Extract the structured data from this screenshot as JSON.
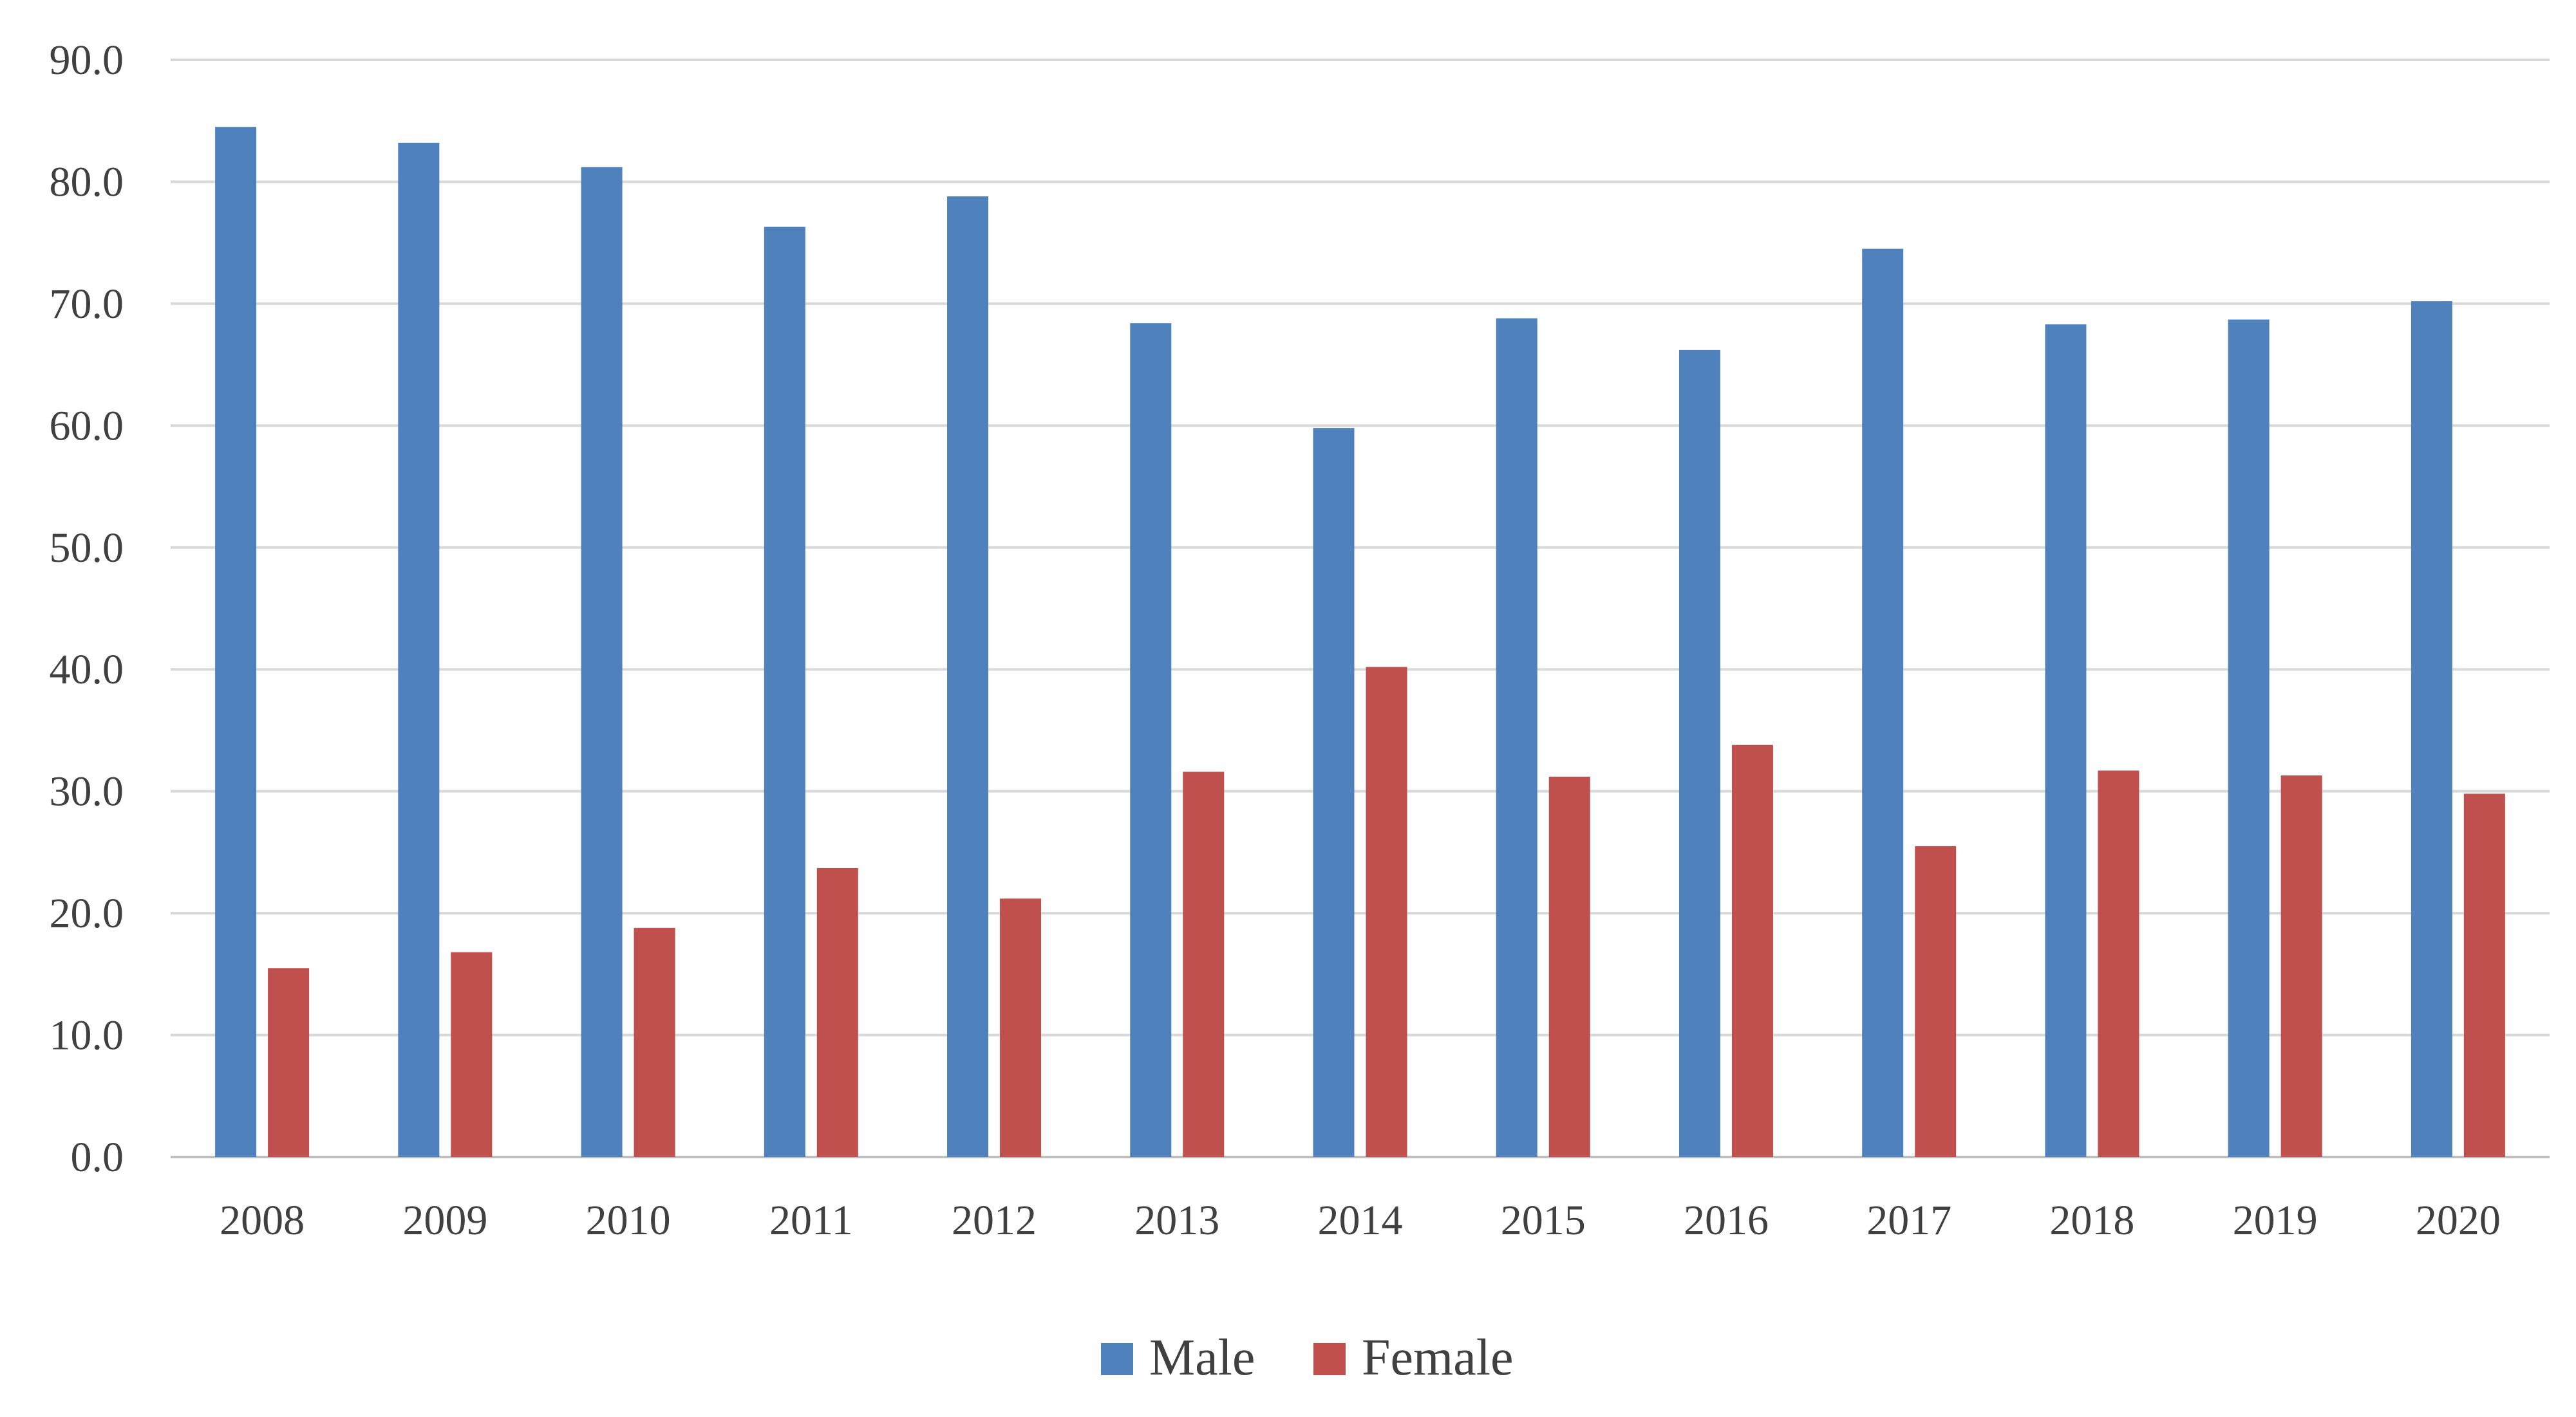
{
  "chart_data": {
    "type": "bar",
    "title": "",
    "xlabel": "",
    "ylabel": "",
    "categories": [
      "2008",
      "2009",
      "2010",
      "2011",
      "2012",
      "2013",
      "2014",
      "2015",
      "2016",
      "2017",
      "2018",
      "2019",
      "2020"
    ],
    "series": [
      {
        "name": "Male",
        "color": "#4f81bd",
        "values": [
          84.5,
          83.2,
          81.2,
          76.3,
          78.8,
          68.4,
          59.8,
          68.8,
          66.2,
          74.5,
          68.3,
          68.7,
          70.2
        ]
      },
      {
        "name": "Female",
        "color": "#c0504d",
        "values": [
          15.5,
          16.8,
          18.8,
          23.7,
          21.2,
          31.6,
          40.2,
          31.2,
          33.8,
          25.5,
          31.7,
          31.3,
          29.8
        ]
      }
    ],
    "ylim": [
      0,
      90
    ],
    "yticks": [
      "0.0",
      "10.0",
      "20.0",
      "30.0",
      "40.0",
      "50.0",
      "60.0",
      "70.0",
      "80.0",
      "90.0"
    ],
    "grid": true,
    "legend_position": "bottom",
    "colors": {
      "gridline": "#d9d9d9",
      "axis_text": "#404040"
    }
  }
}
